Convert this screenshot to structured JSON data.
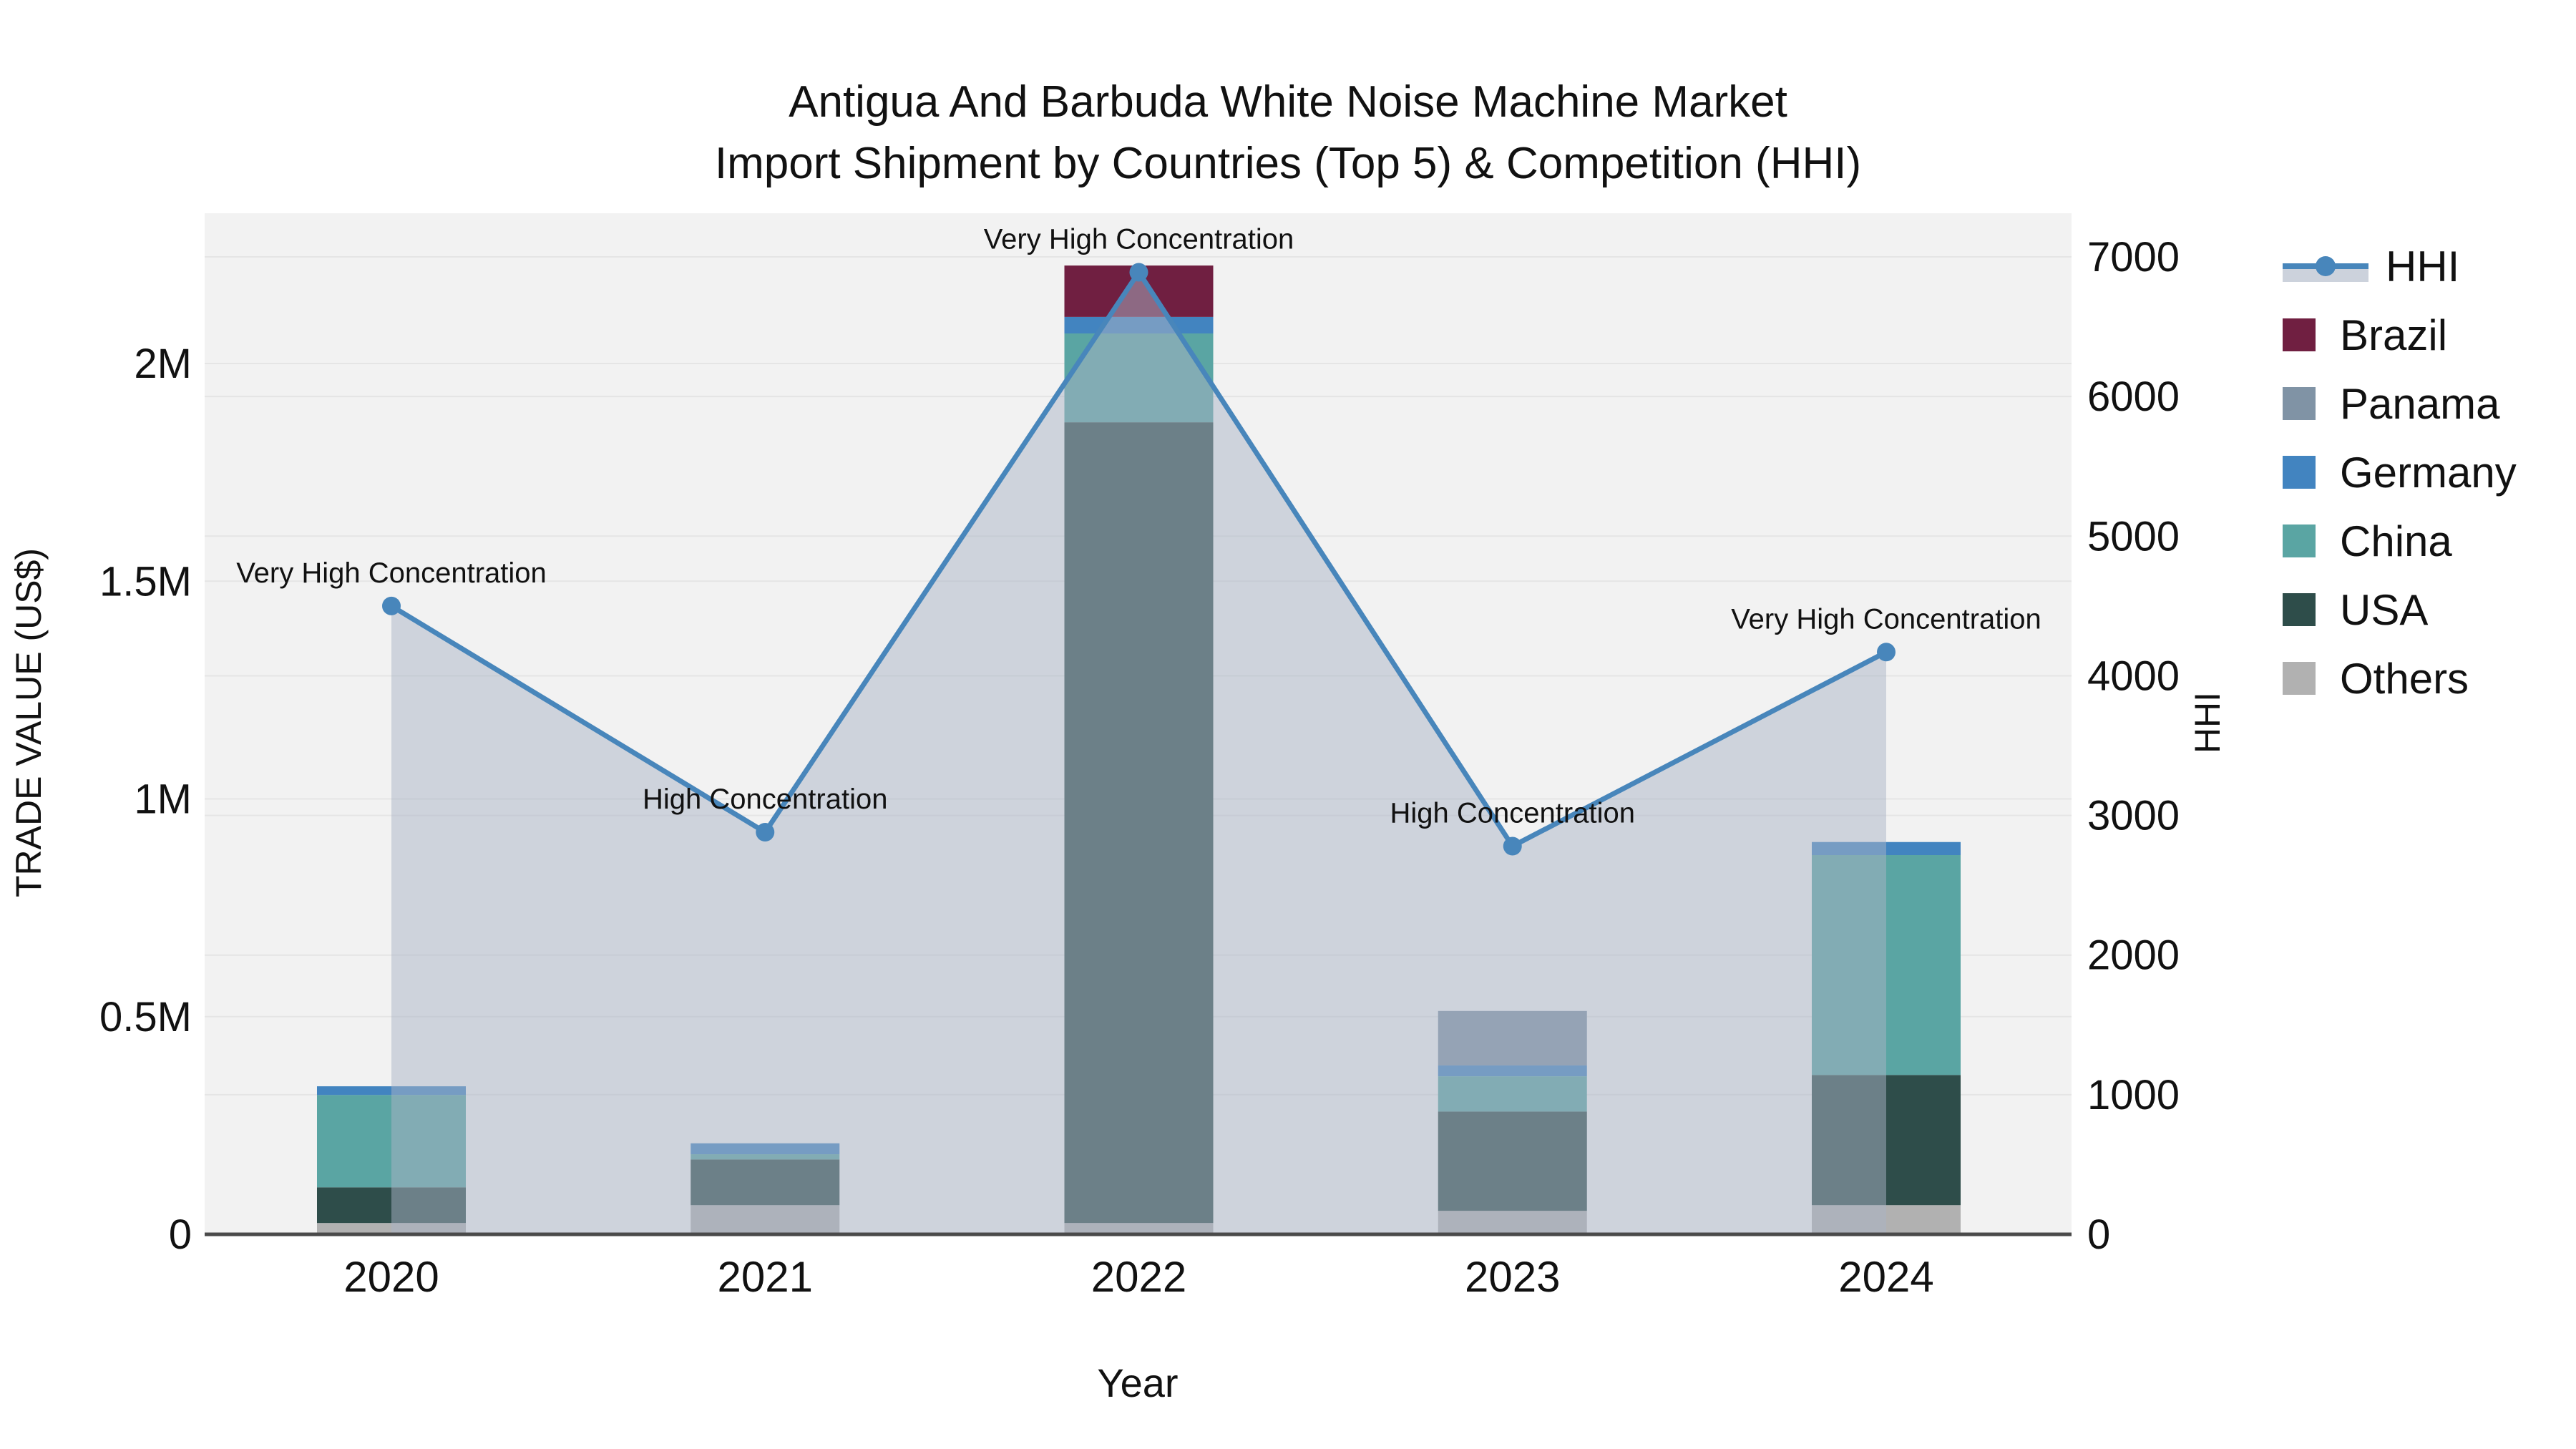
{
  "chart_data": {
    "type": "combo-stacked-bar-line",
    "title_line1": "Antigua And Barbuda White Noise Machine Market",
    "title_line2": "Import Shipment by Countries (Top 5) & Competition (HHI)",
    "xlabel": "Year",
    "ylabel_left": "TRADE VALUE (US$)",
    "ylabel_right": "HHI",
    "categories": [
      "2020",
      "2021",
      "2022",
      "2023",
      "2024"
    ],
    "stack_order": [
      "Others",
      "USA",
      "China",
      "Germany",
      "Panama",
      "Brazil"
    ],
    "series": [
      {
        "name": "Others",
        "values": [
          26000,
          67000,
          26000,
          54000,
          67000
        ]
      },
      {
        "name": "USA",
        "values": [
          82000,
          105000,
          1839000,
          228000,
          299000
        ]
      },
      {
        "name": "China",
        "values": [
          212000,
          12000,
          204000,
          81000,
          505000
        ]
      },
      {
        "name": "Germany",
        "values": [
          20000,
          25000,
          38000,
          25000,
          30000
        ]
      },
      {
        "name": "Panama",
        "values": [
          0,
          0,
          0,
          125000,
          0
        ]
      },
      {
        "name": "Brazil",
        "values": [
          0,
          0,
          118000,
          0,
          0
        ]
      }
    ],
    "line_series": {
      "name": "HHI",
      "values": [
        4500,
        2880,
        6890,
        2780,
        4170
      ]
    },
    "annotations": [
      {
        "year": "2020",
        "text": "Very High Concentration"
      },
      {
        "year": "2021",
        "text": "High Concentration"
      },
      {
        "year": "2022",
        "text": "Very High Concentration"
      },
      {
        "year": "2023",
        "text": "High Concentration"
      },
      {
        "year": "2024",
        "text": "Very High Concentration"
      }
    ],
    "axis_left": {
      "ticks": [
        {
          "label": "0",
          "value": 0
        },
        {
          "label": "0.5M",
          "value": 500000
        },
        {
          "label": "1M",
          "value": 1000000
        },
        {
          "label": "1.5M",
          "value": 1500000
        },
        {
          "label": "2M",
          "value": 2000000
        }
      ],
      "max": 2345000
    },
    "axis_right": {
      "ticks": [
        {
          "label": "0",
          "value": 0
        },
        {
          "label": "1000",
          "value": 1000
        },
        {
          "label": "2000",
          "value": 2000
        },
        {
          "label": "3000",
          "value": 3000
        },
        {
          "label": "4000",
          "value": 4000
        },
        {
          "label": "5000",
          "value": 5000
        },
        {
          "label": "6000",
          "value": 6000
        },
        {
          "label": "7000",
          "value": 7000
        }
      ],
      "max": 7315
    },
    "legend_order": [
      "HHI",
      "Brazil",
      "Panama",
      "Germany",
      "China",
      "USA",
      "Others"
    ],
    "colors": {
      "Brazil": "#701f41",
      "Panama": "#8093a5",
      "Germany": "#4284c0",
      "China": "#5aa5a3",
      "USA": "#2e4d4a",
      "Others": "#b1b1b1",
      "hhi_line": "#4886bb",
      "area_fill": "rgba(170,180,198,0.5)",
      "legend_band": "#ccd2dc",
      "plot_bg": "#f2f2f2",
      "gridline": "#e5e5e5",
      "axis_line": "#4a4a4a",
      "text": "#111111"
    }
  }
}
